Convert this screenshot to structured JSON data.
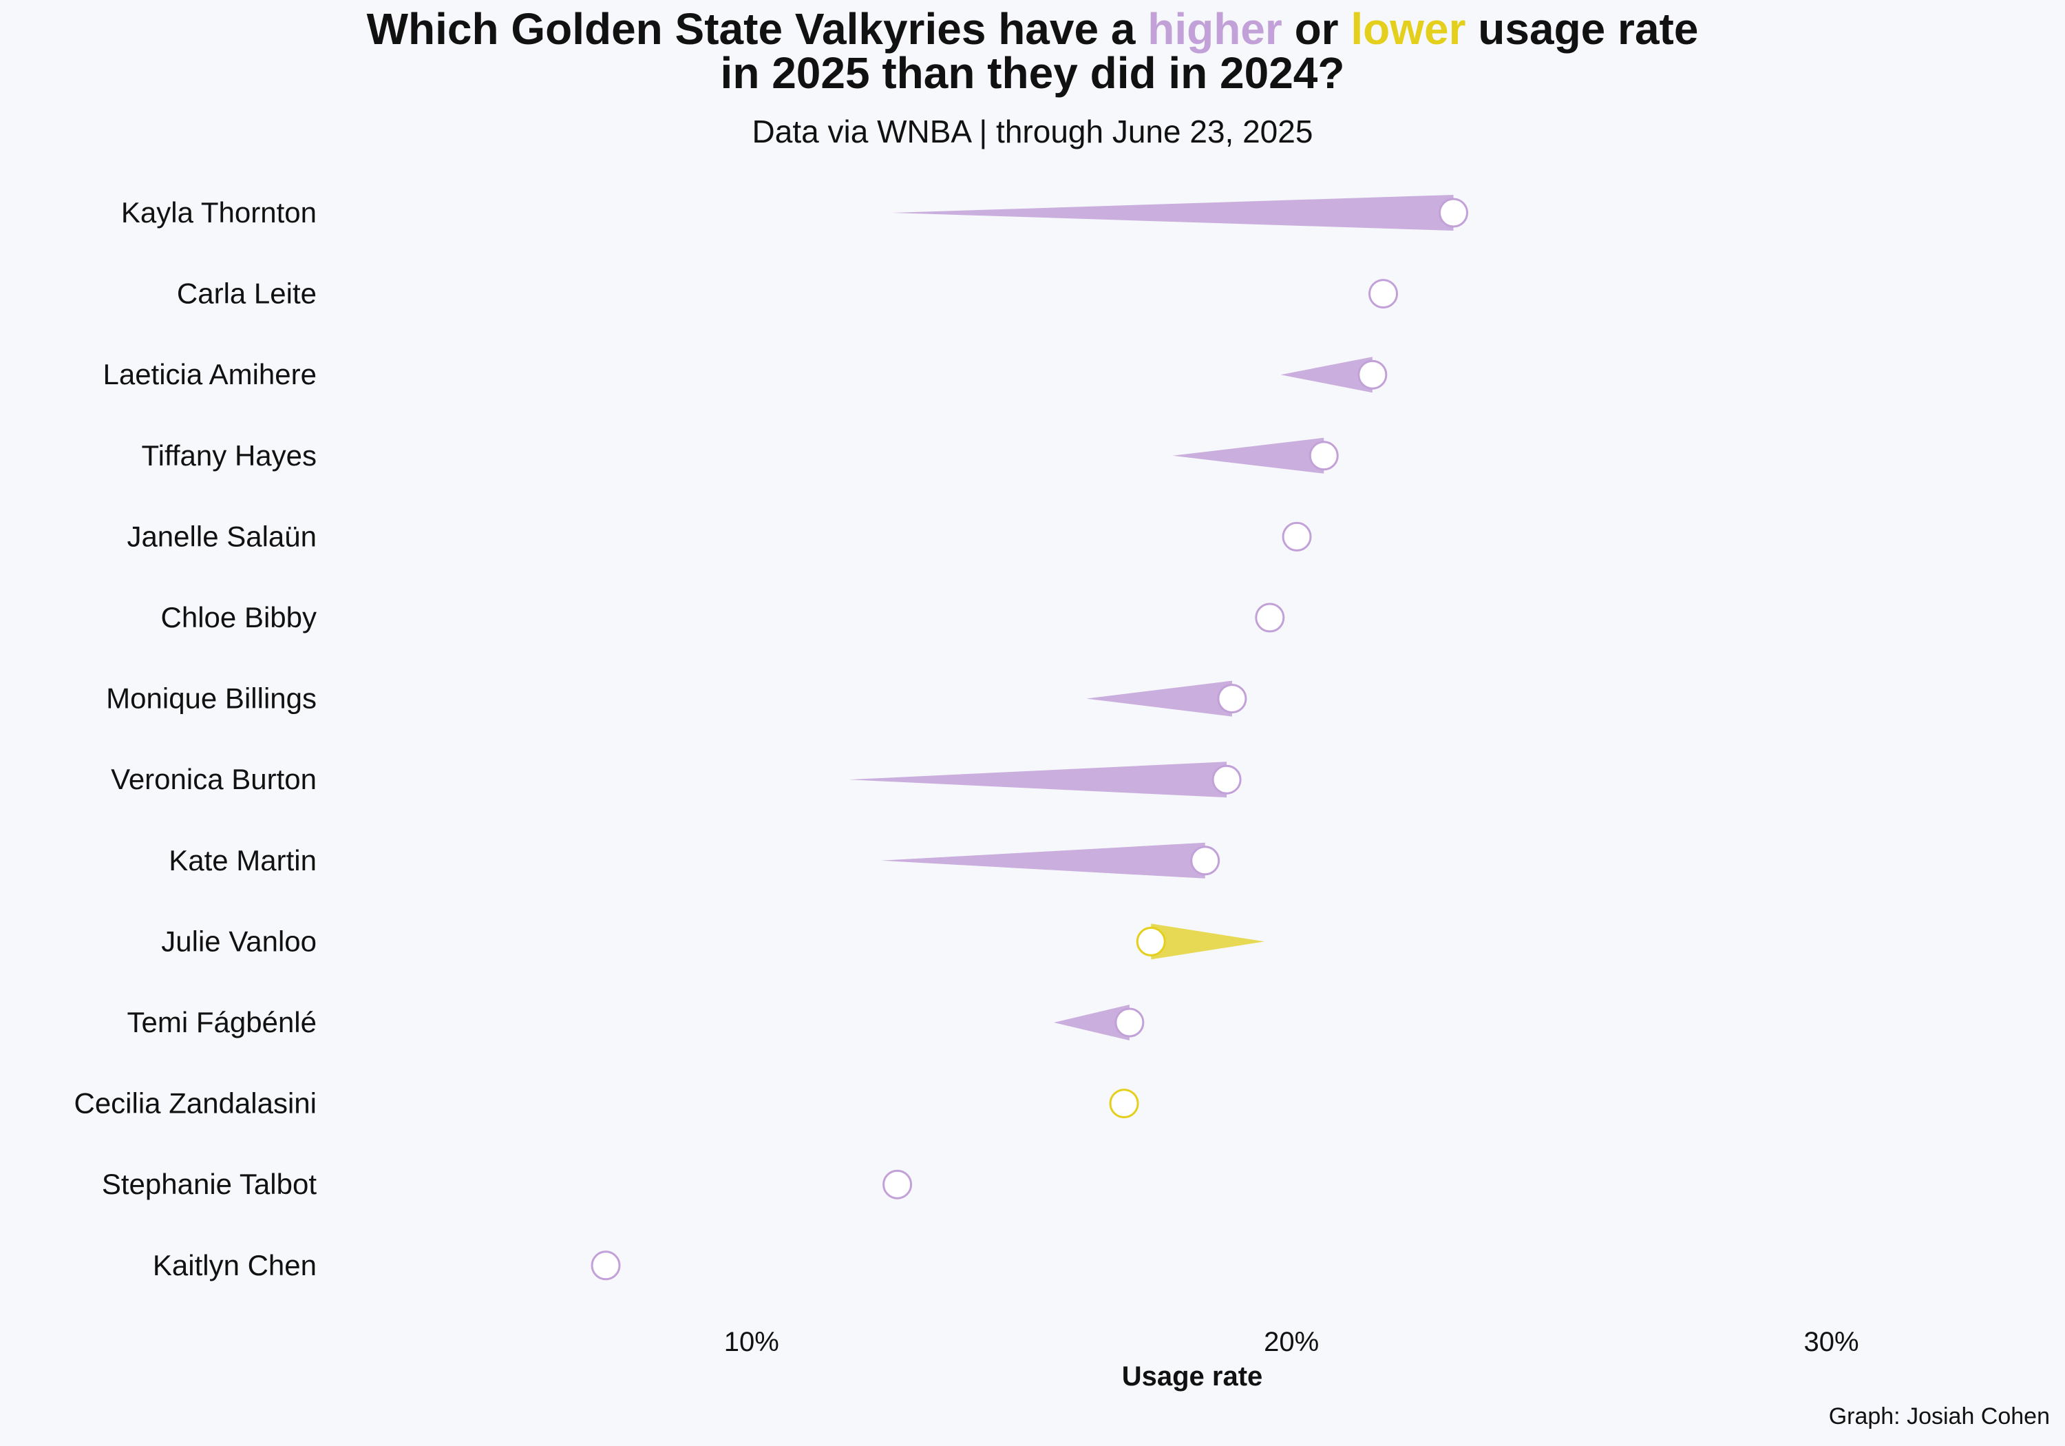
{
  "title": {
    "line1_before": "Which Golden State Valkyries have a ",
    "higher": "higher",
    "between": " or ",
    "lower": "lower",
    "line1_after": " usage rate",
    "line2": "in 2025 than they did in 2024?"
  },
  "subtitle": "Data via WNBA  |  through June 23, 2025",
  "caption": "Graph: Josiah Cohen",
  "colors": {
    "background": "#f7f8fc",
    "higher": "#c2a1d8",
    "lower": "#e3cf1c",
    "point_fill": "#ffffff"
  },
  "chart_data": {
    "type": "dumbbell-wedge",
    "xlabel": "Usage rate",
    "x_ticks": [
      "10%",
      "20%",
      "30%"
    ],
    "x_tick_values": [
      10,
      20,
      30
    ],
    "xlim": [
      2.2,
      34.2
    ],
    "series": [
      {
        "name": "2024"
      },
      {
        "name": "2025"
      }
    ],
    "players": [
      {
        "name": "Kayla Thornton",
        "usage_2024": 12.6,
        "usage_2025": 23.0,
        "direction": "higher"
      },
      {
        "name": "Carla Leite",
        "usage_2024": null,
        "usage_2025": 21.7,
        "direction": "higher"
      },
      {
        "name": "Laeticia Amihere",
        "usage_2024": 19.8,
        "usage_2025": 21.5,
        "direction": "higher"
      },
      {
        "name": "Tiffany Hayes",
        "usage_2024": 17.8,
        "usage_2025": 20.6,
        "direction": "higher"
      },
      {
        "name": "Janelle Salaün",
        "usage_2024": null,
        "usage_2025": 20.1,
        "direction": "higher"
      },
      {
        "name": "Chloe Bibby",
        "usage_2024": null,
        "usage_2025": 19.6,
        "direction": "higher"
      },
      {
        "name": "Monique Billings",
        "usage_2024": 16.2,
        "usage_2025": 18.9,
        "direction": "higher"
      },
      {
        "name": "Veronica Burton",
        "usage_2024": 11.8,
        "usage_2025": 18.8,
        "direction": "higher"
      },
      {
        "name": "Kate Martin",
        "usage_2024": 12.4,
        "usage_2025": 18.4,
        "direction": "higher"
      },
      {
        "name": "Julie Vanloo",
        "usage_2024": 19.5,
        "usage_2025": 17.4,
        "direction": "lower"
      },
      {
        "name": "Temi Fágbénlé",
        "usage_2024": 15.6,
        "usage_2025": 17.0,
        "direction": "higher"
      },
      {
        "name": "Cecilia Zandalasini",
        "usage_2024": null,
        "usage_2025": 16.9,
        "direction": "lower"
      },
      {
        "name": "Stephanie Talbot",
        "usage_2024": null,
        "usage_2025": 12.7,
        "direction": "higher"
      },
      {
        "name": "Kaitlyn Chen",
        "usage_2024": null,
        "usage_2025": 7.3,
        "direction": "higher"
      }
    ]
  }
}
